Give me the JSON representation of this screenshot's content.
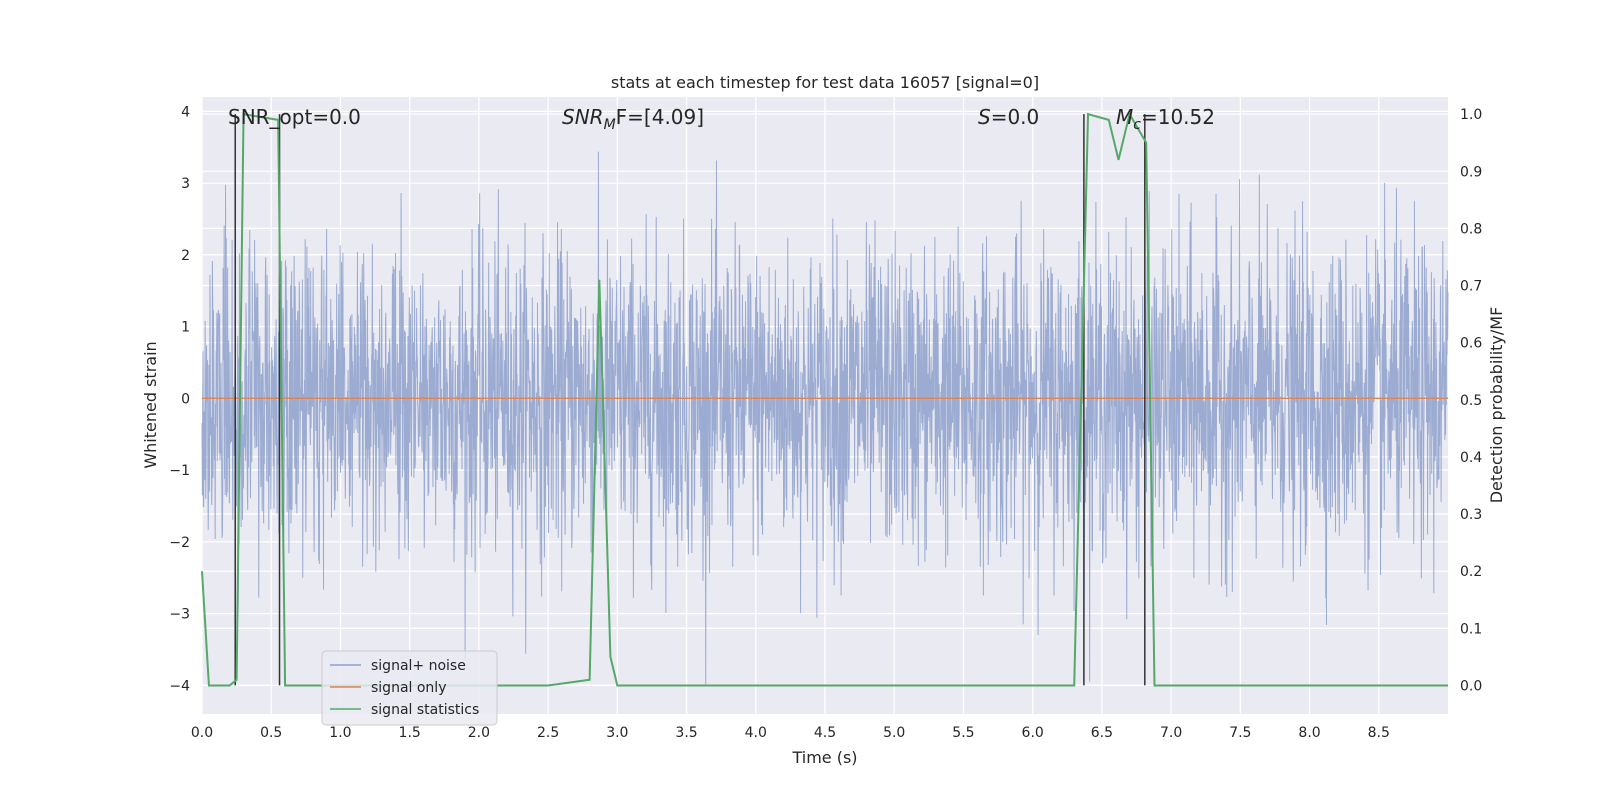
{
  "chart_data": {
    "type": "line",
    "title": "stats at each timestep for test data 16057 [signal=0]",
    "xlabel": "Time (s)",
    "ylabel": "Whitened strain",
    "y2label": "Detection probability/MF",
    "xlim": [
      0.0,
      9.0
    ],
    "ylim": [
      -4.4,
      4.2
    ],
    "y2lim": [
      -0.05,
      1.03
    ],
    "xticks": [
      0.0,
      0.5,
      1.0,
      1.5,
      2.0,
      2.5,
      3.0,
      3.5,
      4.0,
      4.5,
      5.0,
      5.5,
      6.0,
      6.5,
      7.0,
      7.5,
      8.0,
      8.5
    ],
    "xtick_labels": [
      "0.0",
      "0.5",
      "1.0",
      "1.5",
      "2.0",
      "2.5",
      "3.0",
      "3.5",
      "4.0",
      "4.5",
      "5.0",
      "5.5",
      "6.0",
      "6.5",
      "7.0",
      "7.5",
      "8.0",
      "8.5"
    ],
    "yticks": [
      4,
      3,
      2,
      1,
      0,
      -1,
      -2,
      -3,
      -4
    ],
    "ytick_labels": [
      "4",
      "3",
      "2",
      "1",
      "0",
      "−1",
      "−2",
      "−3",
      "−4"
    ],
    "y2ticks": [
      1.0,
      0.9,
      0.8,
      0.7,
      0.6,
      0.5,
      0.4,
      0.3,
      0.2,
      0.1,
      0.0
    ],
    "y2tick_labels": [
      "1.0",
      "0.9",
      "0.8",
      "0.7",
      "0.6",
      "0.5",
      "0.4",
      "0.3",
      "0.2",
      "0.1",
      "0.0"
    ],
    "grid": true,
    "legend_position": "lower-left",
    "series": [
      {
        "name": "signal+ noise",
        "color": "#8da0cb",
        "axis": "left",
        "kind": "whitened-noise",
        "approx_std": 1.0,
        "approx_range": [
          -4.0,
          4.0
        ]
      },
      {
        "name": "signal only",
        "color": "#dd8452",
        "axis": "left",
        "x": [
          0.0,
          9.0
        ],
        "y": [
          0.0,
          0.0
        ]
      },
      {
        "name": "signal statistics",
        "color": "#55a868",
        "axis": "right",
        "x": [
          0.0,
          0.05,
          0.2,
          0.25,
          0.3,
          0.55,
          0.6,
          0.7,
          2.5,
          2.8,
          2.87,
          2.95,
          3.0,
          6.3,
          6.4,
          6.55,
          6.62,
          6.7,
          6.82,
          6.88,
          9.0
        ],
        "y": [
          0.2,
          0.0,
          0.0,
          0.01,
          1.0,
          0.99,
          0.0,
          0.0,
          0.0,
          0.01,
          0.71,
          0.05,
          0.0,
          0.0,
          1.0,
          0.99,
          0.92,
          1.0,
          0.95,
          0.0,
          0.0
        ]
      }
    ],
    "vertical_markers": [
      {
        "x": 0.24,
        "y_top": 1.0,
        "y_bottom": 0.0,
        "color": "#333333"
      },
      {
        "x": 0.56,
        "y_top": 1.0,
        "y_bottom": 0.0,
        "color": "#333333"
      },
      {
        "x": 6.37,
        "y_top": 1.0,
        "y_bottom": 0.0,
        "color": "#333333"
      },
      {
        "x": 6.81,
        "y_top": 1.0,
        "y_bottom": 0.0,
        "color": "#333333"
      }
    ],
    "annotations": [
      {
        "key": "snr-opt",
        "label": "SNR_opt=0.0"
      },
      {
        "key": "snr-mf",
        "label": "SNR",
        "sub": "M",
        "suffix": "F=[4.09]"
      },
      {
        "key": "s-value",
        "label": "S",
        "suffix": "=0.0"
      },
      {
        "key": "mc-value",
        "label": "M",
        "sub": "c",
        "suffix": "=10.52"
      }
    ]
  }
}
